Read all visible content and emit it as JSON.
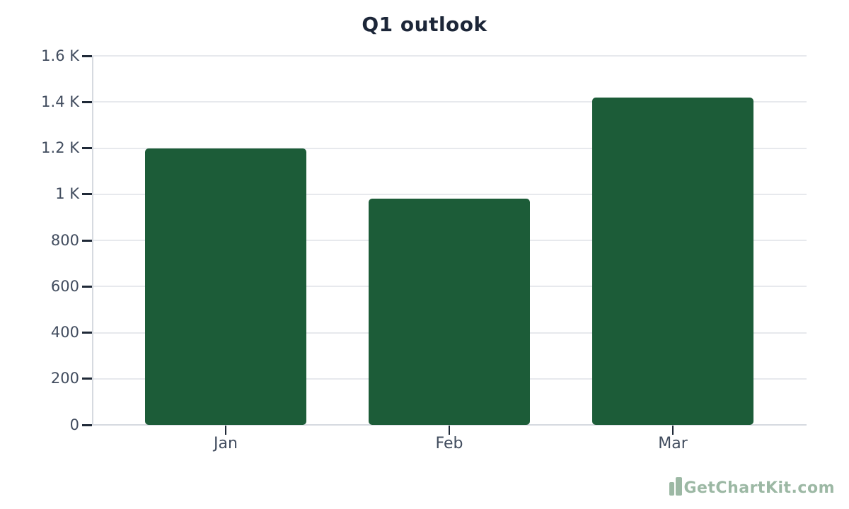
{
  "page": {
    "background": "#ffffff"
  },
  "chart_data": {
    "type": "bar",
    "title": "Q1 outlook",
    "categories": [
      "Jan",
      "Feb",
      "Mar"
    ],
    "values": [
      1200,
      980,
      1420
    ],
    "xlabel": "",
    "ylabel": "",
    "ylim": [
      0,
      1600
    ],
    "ytick_step": 200,
    "yticks": [
      {
        "value": 0,
        "label": "0"
      },
      {
        "value": 200,
        "label": "200"
      },
      {
        "value": 400,
        "label": "400"
      },
      {
        "value": 600,
        "label": "600"
      },
      {
        "value": 800,
        "label": "800"
      },
      {
        "value": 1000,
        "label": "1 K"
      },
      {
        "value": 1200,
        "label": "1.2 K"
      },
      {
        "value": 1400,
        "label": "1.4 K"
      },
      {
        "value": 1600,
        "label": "1.6 K"
      }
    ],
    "grid": true,
    "legend": false,
    "colors": {
      "bar": "#1c5c38",
      "title": "#1c2638",
      "tick_label": "#414c5e",
      "gridline": "#e7e9ed",
      "axis_line": "#d6dae0",
      "tick_mark": "#1f2937"
    }
  },
  "watermark": {
    "label": "GetChartKit.com",
    "color": "#9cb8a4",
    "icon": "bar-chart-icon"
  }
}
